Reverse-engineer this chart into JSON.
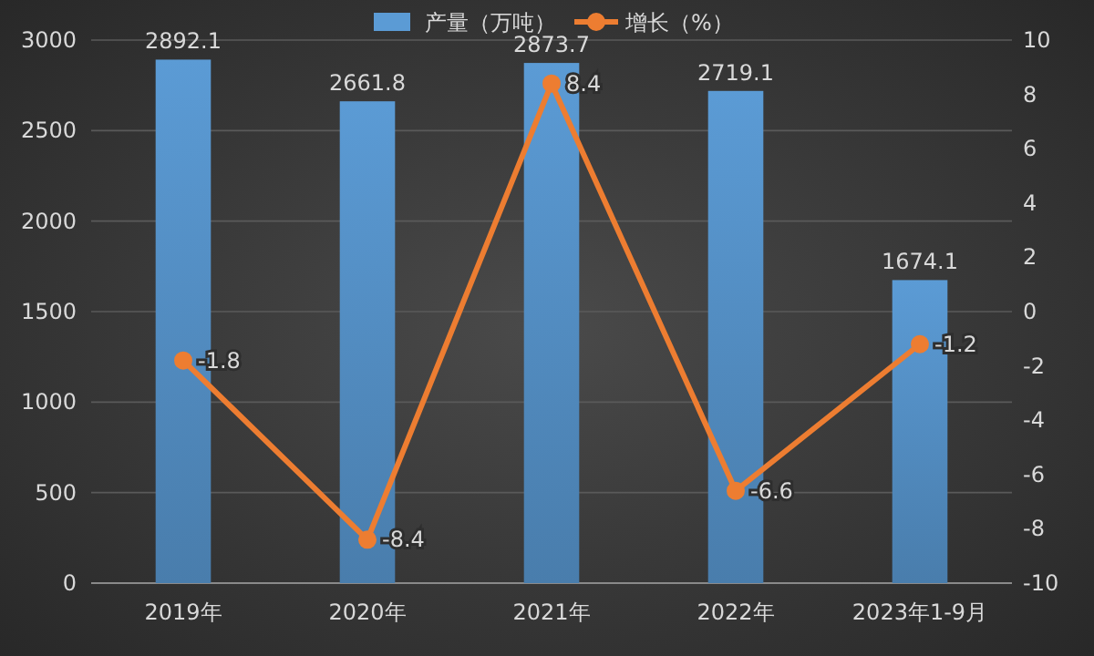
{
  "chart_data": {
    "type": "bar",
    "categories": [
      "2019年",
      "2020年",
      "2021年",
      "2022年",
      "2023年1-9月"
    ],
    "series": [
      {
        "name": "产量（万吨）",
        "color": "#5b9bd5",
        "values": [
          2892.1,
          2661.8,
          2873.7,
          2719.1,
          1674.1
        ]
      },
      {
        "name": "增长（%）",
        "type": "line",
        "axis": "y2",
        "color": "#ed7d31",
        "values": [
          -1.8,
          -8.4,
          8.4,
          -6.6,
          -1.2
        ]
      }
    ],
    "ylim": [
      0,
      3000
    ],
    "yticks": [
      0,
      500,
      1000,
      1500,
      2000,
      2500,
      3000
    ],
    "y2lim": [
      -10,
      10
    ],
    "y2ticks": [
      -10,
      -8,
      -6,
      -4,
      -2,
      0,
      2,
      4,
      6,
      8,
      10
    ],
    "grid": "y",
    "legend": "top",
    "marker": "circle",
    "line_style": "solid",
    "data_labels": true
  }
}
